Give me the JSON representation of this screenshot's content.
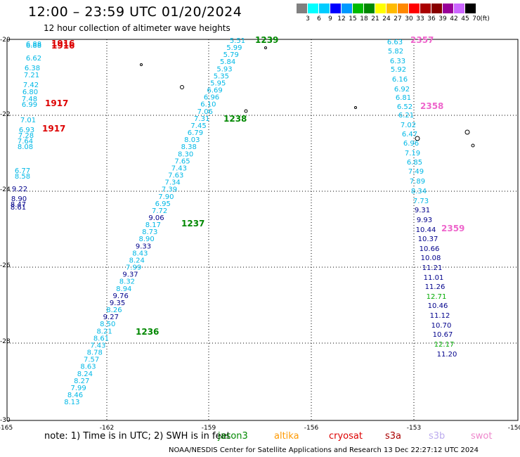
{
  "header": {
    "title": "12:00 – 23:59 UTC 01/20/2024",
    "subtitle": "12 hour collection of altimeter wave heights"
  },
  "legend": {
    "colors": [
      "#808080",
      "#00ffff",
      "#00ccff",
      "#0000ff",
      "#0099ff",
      "#00bb00",
      "#008800",
      "#ffff00",
      "#ffbb00",
      "#ff8800",
      "#ff0000",
      "#aa0000",
      "#880000",
      "#990099",
      "#cc66ff",
      "#000000"
    ],
    "labels": [
      "3",
      "6",
      "9",
      "12",
      "15",
      "18",
      "21",
      "24",
      "27",
      "30",
      "33",
      "36",
      "39",
      "42",
      "45",
      "70"
    ],
    "unit": "(ft)"
  },
  "map": {
    "lon_ticks": [
      "-165",
      "-162",
      "-159",
      "-156",
      "-153",
      "-150"
    ],
    "lat_ticks": [
      "-20",
      "-22",
      "-24",
      "-26",
      "-28",
      "-30"
    ],
    "track_colors": {
      "cyan": "#00b8e6",
      "blue": "#00008b",
      "green": "#00aa00"
    },
    "time_label_colors": {
      "jason3": "#008800",
      "altika": "#dd0000",
      "sentinel": "#ee66cc"
    },
    "tracks": [
      {
        "name": "track-1916-1917",
        "points": [
          [
            "6.88",
            "cyan"
          ],
          [
            "6.88",
            "cyan"
          ],
          [
            "6.62",
            "cyan"
          ],
          [
            "6.38",
            "cyan"
          ],
          [
            "7.21",
            "cyan"
          ],
          [
            "7.42",
            "cyan"
          ],
          [
            "6.80",
            "cyan"
          ],
          [
            "7.48",
            "cyan"
          ],
          [
            "6.99",
            "cyan"
          ],
          [
            "7.01",
            "cyan"
          ],
          [
            "6.93",
            "cyan"
          ],
          [
            "7.28",
            "cyan"
          ],
          [
            "7.64",
            "cyan"
          ],
          [
            "8.08",
            "cyan"
          ],
          [
            "6.77",
            "cyan"
          ],
          [
            "8.58",
            "cyan"
          ],
          [
            "9.22",
            "blue"
          ],
          [
            "8.90",
            "blue"
          ],
          [
            "8.47",
            "blue"
          ],
          [
            "8.61",
            "blue"
          ]
        ],
        "labels": [
          {
            "text": "1916",
            "color": "altika"
          },
          {
            "text": "1916",
            "color": "altika"
          },
          {
            "text": "1917",
            "color": "altika"
          },
          {
            "text": "1917",
            "color": "altika"
          }
        ]
      },
      {
        "name": "track-1236-1239",
        "points": [
          [
            "5.51",
            "cyan"
          ],
          [
            "5.99",
            "cyan"
          ],
          [
            "5.79",
            "cyan"
          ],
          [
            "5.84",
            "cyan"
          ],
          [
            "5.93",
            "cyan"
          ],
          [
            "5.35",
            "cyan"
          ],
          [
            "5.95",
            "cyan"
          ],
          [
            "6.69",
            "cyan"
          ],
          [
            "6.96",
            "cyan"
          ],
          [
            "6.10",
            "cyan"
          ],
          [
            "7.06",
            "cyan"
          ],
          [
            "7.31",
            "cyan"
          ],
          [
            "7.45",
            "cyan"
          ],
          [
            "6.79",
            "cyan"
          ],
          [
            "8.03",
            "cyan"
          ],
          [
            "8.38",
            "cyan"
          ],
          [
            "8.30",
            "cyan"
          ],
          [
            "7.65",
            "cyan"
          ],
          [
            "7.43",
            "cyan"
          ],
          [
            "7.63",
            "cyan"
          ],
          [
            "7.34",
            "cyan"
          ],
          [
            "7.39",
            "cyan"
          ],
          [
            "7.90",
            "cyan"
          ],
          [
            "6.95",
            "cyan"
          ],
          [
            "7.72",
            "cyan"
          ],
          [
            "9.06",
            "blue"
          ],
          [
            "8.17",
            "cyan"
          ],
          [
            "8.73",
            "cyan"
          ],
          [
            "8.90",
            "cyan"
          ],
          [
            "9.33",
            "blue"
          ],
          [
            "8.43",
            "cyan"
          ],
          [
            "8.24",
            "cyan"
          ],
          [
            "7.99",
            "cyan"
          ],
          [
            "9.37",
            "blue"
          ],
          [
            "8.32",
            "cyan"
          ],
          [
            "8.94",
            "cyan"
          ],
          [
            "9.76",
            "blue"
          ],
          [
            "9.35",
            "blue"
          ],
          [
            "8.26",
            "cyan"
          ],
          [
            "9.27",
            "blue"
          ],
          [
            "8.50",
            "cyan"
          ],
          [
            "8.21",
            "cyan"
          ],
          [
            "8.61",
            "cyan"
          ],
          [
            "7.43",
            "cyan"
          ],
          [
            "8.78",
            "cyan"
          ],
          [
            "7.57",
            "cyan"
          ],
          [
            "8.63",
            "cyan"
          ],
          [
            "8.24",
            "cyan"
          ],
          [
            "8.27",
            "cyan"
          ],
          [
            "7.99",
            "cyan"
          ],
          [
            "8.46",
            "cyan"
          ],
          [
            "8.13",
            "cyan"
          ]
        ],
        "labels": [
          {
            "text": "1239",
            "color": "jason3"
          },
          {
            "text": "1238",
            "color": "jason3"
          },
          {
            "text": "1237",
            "color": "jason3"
          },
          {
            "text": "1236",
            "color": "jason3"
          }
        ]
      },
      {
        "name": "track-2357-2359",
        "points": [
          [
            "6.63",
            "cyan"
          ],
          [
            "5.82",
            "cyan"
          ],
          [
            "6.33",
            "cyan"
          ],
          [
            "5.92",
            "cyan"
          ],
          [
            "6.16",
            "cyan"
          ],
          [
            "6.92",
            "cyan"
          ],
          [
            "6.81",
            "cyan"
          ],
          [
            "6.52",
            "cyan"
          ],
          [
            "6.21",
            "cyan"
          ],
          [
            "7.02",
            "cyan"
          ],
          [
            "6.47",
            "cyan"
          ],
          [
            "6.96",
            "cyan"
          ],
          [
            "7.19",
            "cyan"
          ],
          [
            "6.85",
            "cyan"
          ],
          [
            "7.49",
            "cyan"
          ],
          [
            "7.89",
            "cyan"
          ],
          [
            "8.34",
            "cyan"
          ],
          [
            "7.73",
            "cyan"
          ],
          [
            "9.31",
            "blue"
          ],
          [
            "9.93",
            "blue"
          ],
          [
            "10.44",
            "blue"
          ],
          [
            "10.37",
            "blue"
          ],
          [
            "10.66",
            "blue"
          ],
          [
            "10.08",
            "blue"
          ],
          [
            "11.21",
            "blue"
          ],
          [
            "11.01",
            "blue"
          ],
          [
            "11.26",
            "blue"
          ],
          [
            "12.71",
            "green"
          ],
          [
            "10.46",
            "blue"
          ],
          [
            "11.12",
            "blue"
          ],
          [
            "10.70",
            "blue"
          ],
          [
            "10.67",
            "blue"
          ],
          [
            "12.17",
            "green"
          ],
          [
            "11.20",
            "blue"
          ]
        ],
        "labels": [
          {
            "text": "2357",
            "color": "sentinel"
          },
          {
            "text": "2358",
            "color": "sentinel"
          },
          {
            "text": "2359",
            "color": "sentinel"
          }
        ]
      }
    ]
  },
  "footer": {
    "note": "note: 1) Time is in UTC; 2) SWH is in feet",
    "missions": [
      {
        "text": "jason3",
        "color": "#008800"
      },
      {
        "text": "altika",
        "color": "#ff9900"
      },
      {
        "text": "cryosat",
        "color": "#dd0000"
      },
      {
        "text": "s3a",
        "color": "#aa0000"
      },
      {
        "text": "s3b",
        "color": "#bbaaee"
      },
      {
        "text": "swot",
        "color": "#ee88cc"
      }
    ],
    "credit": "NOAA/NESDIS Center for Satellite Applications and Research    13 Dec 22:27:12 UTC 2024"
  }
}
